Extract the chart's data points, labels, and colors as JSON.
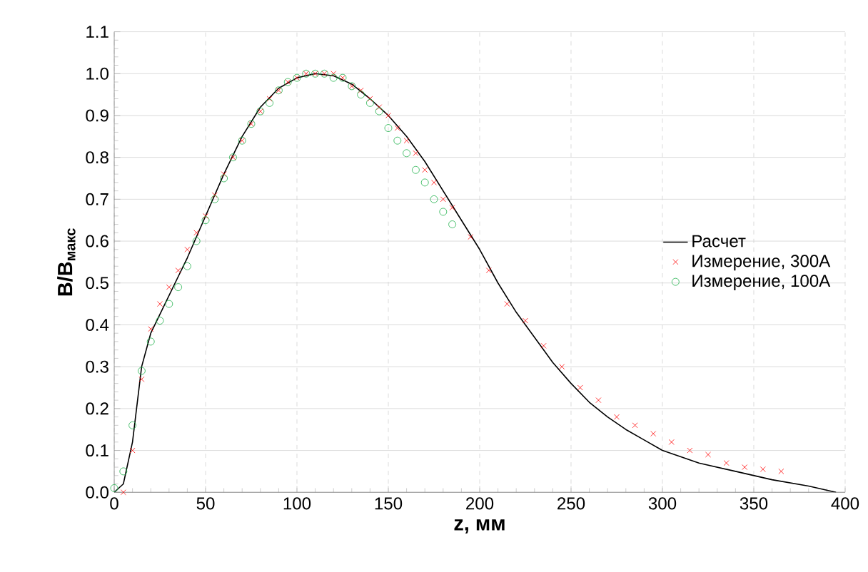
{
  "chart_data": {
    "type": "line",
    "xlabel": "z, мм",
    "ylabel": "B/B$_{макс}$",
    "xlim": [
      0,
      400
    ],
    "xticks": [
      0,
      50,
      100,
      150,
      200,
      250,
      300,
      350,
      400
    ],
    "ylim": [
      0,
      1.1
    ],
    "yticks": [
      {
        "value": 0,
        "label": "0.0"
      },
      0.1,
      0.2,
      0.3,
      0.4,
      0.5,
      0.6,
      0.7,
      0.8,
      0.9,
      {
        "value": 1.0,
        "label": "1.0"
      },
      1.1
    ],
    "grid": true,
    "legend": "right",
    "series": [
      {
        "name": "Расчет",
        "color": "#000000",
        "marker": "none",
        "x": [
          0,
          5,
          10,
          15,
          20,
          30,
          40,
          50,
          60,
          70,
          80,
          90,
          100,
          110,
          120,
          130,
          140,
          150,
          160,
          170,
          180,
          190,
          200,
          210,
          220,
          230,
          240,
          250,
          260,
          270,
          280,
          290,
          300,
          320,
          340,
          360,
          380,
          395
        ],
        "values": [
          0,
          0.02,
          0.12,
          0.3,
          0.38,
          0.47,
          0.56,
          0.66,
          0.76,
          0.85,
          0.92,
          0.965,
          0.99,
          1.0,
          0.995,
          0.975,
          0.94,
          0.9,
          0.85,
          0.79,
          0.72,
          0.65,
          0.58,
          0.5,
          0.43,
          0.37,
          0.31,
          0.26,
          0.215,
          0.18,
          0.15,
          0.125,
          0.1,
          0.07,
          0.05,
          0.03,
          0.015,
          0.0
        ]
      },
      {
        "name": "Измерение, 300А",
        "type": "scatter",
        "color": "#ff0000",
        "marker": "cross",
        "x": [
          5,
          10,
          15,
          20,
          25,
          30,
          35,
          40,
          45,
          50,
          55,
          60,
          65,
          70,
          75,
          80,
          85,
          90,
          95,
          100,
          105,
          110,
          115,
          120,
          125,
          130,
          135,
          140,
          145,
          150,
          155,
          160,
          165,
          170,
          175,
          180,
          185,
          195,
          205,
          215,
          225,
          235,
          245,
          255,
          265,
          275,
          285,
          295,
          305,
          315,
          325,
          335,
          345,
          355,
          365
        ],
        "values": [
          0.0,
          0.1,
          0.27,
          0.39,
          0.45,
          0.49,
          0.53,
          0.58,
          0.62,
          0.66,
          0.71,
          0.76,
          0.8,
          0.84,
          0.88,
          0.91,
          0.94,
          0.96,
          0.98,
          0.99,
          1.0,
          1.0,
          1.0,
          1.0,
          0.99,
          0.97,
          0.96,
          0.94,
          0.92,
          0.9,
          0.87,
          0.84,
          0.81,
          0.77,
          0.74,
          0.7,
          0.68,
          0.61,
          0.53,
          0.45,
          0.41,
          0.35,
          0.3,
          0.25,
          0.22,
          0.18,
          0.16,
          0.14,
          0.12,
          0.1,
          0.09,
          0.07,
          0.06,
          0.055,
          0.05
        ]
      },
      {
        "name": "Измерение, 100А",
        "type": "scatter",
        "color": "#22b24c",
        "marker": "circle",
        "x": [
          0,
          5,
          10,
          15,
          20,
          25,
          30,
          35,
          40,
          45,
          50,
          55,
          60,
          65,
          70,
          75,
          80,
          85,
          90,
          95,
          100,
          105,
          110,
          115,
          120,
          125,
          130,
          135,
          140,
          145,
          150,
          155,
          160,
          165,
          170,
          175,
          180,
          185
        ],
        "values": [
          0.01,
          0.05,
          0.16,
          0.29,
          0.36,
          0.41,
          0.45,
          0.49,
          0.54,
          0.6,
          0.65,
          0.7,
          0.75,
          0.8,
          0.84,
          0.88,
          0.91,
          0.93,
          0.96,
          0.98,
          0.99,
          1.0,
          1.0,
          1.0,
          0.99,
          0.99,
          0.97,
          0.95,
          0.93,
          0.91,
          0.87,
          0.84,
          0.81,
          0.77,
          0.74,
          0.7,
          0.67,
          0.64
        ]
      }
    ]
  }
}
